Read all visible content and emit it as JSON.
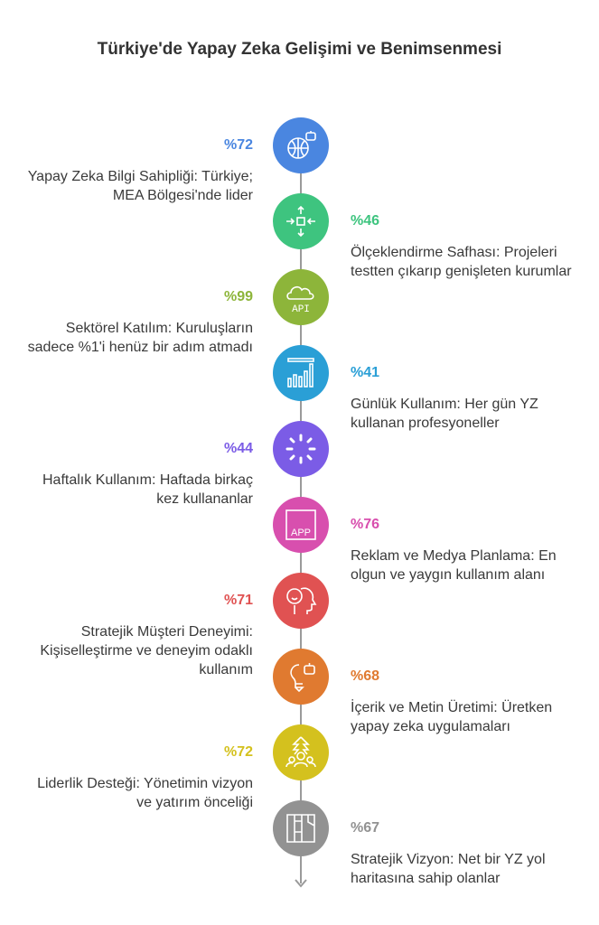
{
  "title": "Türkiye'de Yapay Zeka Gelişimi ve Benimsenmesi",
  "items": [
    {
      "pct": "%72",
      "text": "Yapay Zeka Bilgi Sahipliği: Türkiye; MEA Bölgesi'nde lider",
      "side": "left",
      "color": "#4a86e0",
      "icon": "globe-robot-icon"
    },
    {
      "pct": "%46",
      "text": "Ölçeklendirme Safhası: Projeleri testten çıkarıp genişleten kurumlar",
      "side": "right",
      "color": "#3ec47f",
      "icon": "expand-arrows-icon"
    },
    {
      "pct": "%99",
      "text": "Sektörel Katılım: Kuruluşların sadece %1'i henüz bir adım atmadı",
      "side": "left",
      "color": "#8db53a",
      "icon": "cloud-api-icon"
    },
    {
      "pct": "%41",
      "text": "Günlük Kullanım: Her gün YZ kullanan profesyoneller",
      "side": "right",
      "color": "#2a9fd6",
      "icon": "bar-chart-icon"
    },
    {
      "pct": "%44",
      "text": "Haftalık Kullanım: Haftada birkaç kez kullananlar",
      "side": "left",
      "color": "#7b5ce6",
      "icon": "loading-spinner-icon"
    },
    {
      "pct": "%76",
      "text": "Reklam ve Medya Planlama: En olgun ve yaygın kullanım alanı",
      "side": "right",
      "color": "#d84fae",
      "icon": "app-icon"
    },
    {
      "pct": "%71",
      "text": "Stratejik Müşteri Deneyimi: Kişiselleştirme ve deneyim odaklı kullanım",
      "side": "left",
      "color": "#e05252",
      "icon": "head-smile-icon"
    },
    {
      "pct": "%68",
      "text": "İçerik ve Metin Üretimi: Üretken yapay zeka uygulamaları",
      "side": "right",
      "color": "#e07a30",
      "icon": "lightbulb-robot-icon"
    },
    {
      "pct": "%72",
      "text": "Liderlik Desteği: Yönetimin vizyon ve yatırım önceliği",
      "side": "left",
      "color": "#d4c11e",
      "icon": "leadership-group-icon"
    },
    {
      "pct": "%67",
      "text": "Stratejik Vizyon: Net bir YZ yol haritasına sahip olanlar",
      "side": "right",
      "color": "#929292",
      "icon": "roadmap-panels-icon"
    }
  ]
}
